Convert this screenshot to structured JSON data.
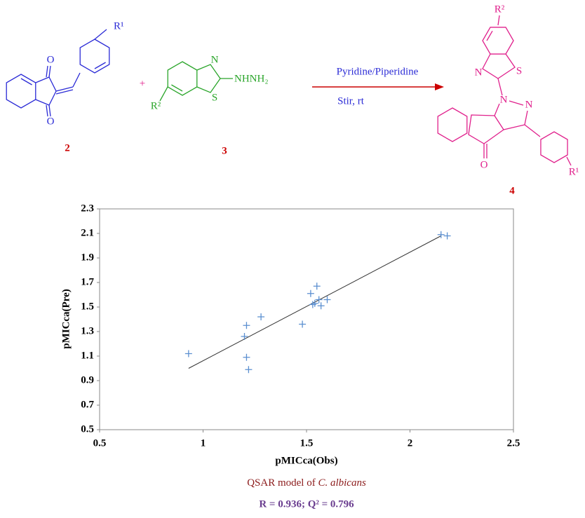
{
  "scheme": {
    "reactant_2": {
      "labels": [
        "R¹",
        "O",
        "O"
      ],
      "number": "2"
    },
    "plus": "+",
    "reactant_3": {
      "labels": [
        "N",
        "S",
        "R²",
        "NHNH₂"
      ],
      "number": "3"
    },
    "conditions": [
      "Pyridine/Piperidine",
      "Stir, rt"
    ],
    "product_4": {
      "labels": [
        "R²",
        "S",
        "N",
        "N",
        "N",
        "O",
        "R¹"
      ],
      "number": "4"
    }
  },
  "chart_data": {
    "type": "scatter",
    "title": [
      "QSAR model of",
      "C. albicans"
    ],
    "subtitle": "R = 0.936; Q² = 0.796",
    "x_label": "pMICca(Obs)",
    "y_label": "pMICca(Pre)",
    "x": [
      0.93,
      1.2,
      1.21,
      1.21,
      1.22,
      1.28,
      1.48,
      1.52,
      1.53,
      1.54,
      1.55,
      1.56,
      1.57,
      1.6,
      2.15,
      2.18
    ],
    "values": [
      1.12,
      1.26,
      1.09,
      1.35,
      0.99,
      1.42,
      1.36,
      1.61,
      1.52,
      1.53,
      1.67,
      1.56,
      1.51,
      1.56,
      2.09,
      2.08
    ],
    "color": "#5b8fd0",
    "trendline": {
      "x": [
        0.93,
        2.15
      ],
      "values": [
        1.0,
        2.08
      ],
      "color": "#333333"
    },
    "xlim": [
      0.5,
      2.5
    ],
    "xticks": [
      0.5,
      1,
      1.5,
      2,
      2.5
    ],
    "ylim": [
      0.5,
      2.3
    ],
    "yticks": [
      0.5,
      0.7,
      0.9,
      1.1,
      1.3,
      1.5,
      1.7,
      1.9,
      2.1,
      2.3
    ],
    "grid": false
  }
}
